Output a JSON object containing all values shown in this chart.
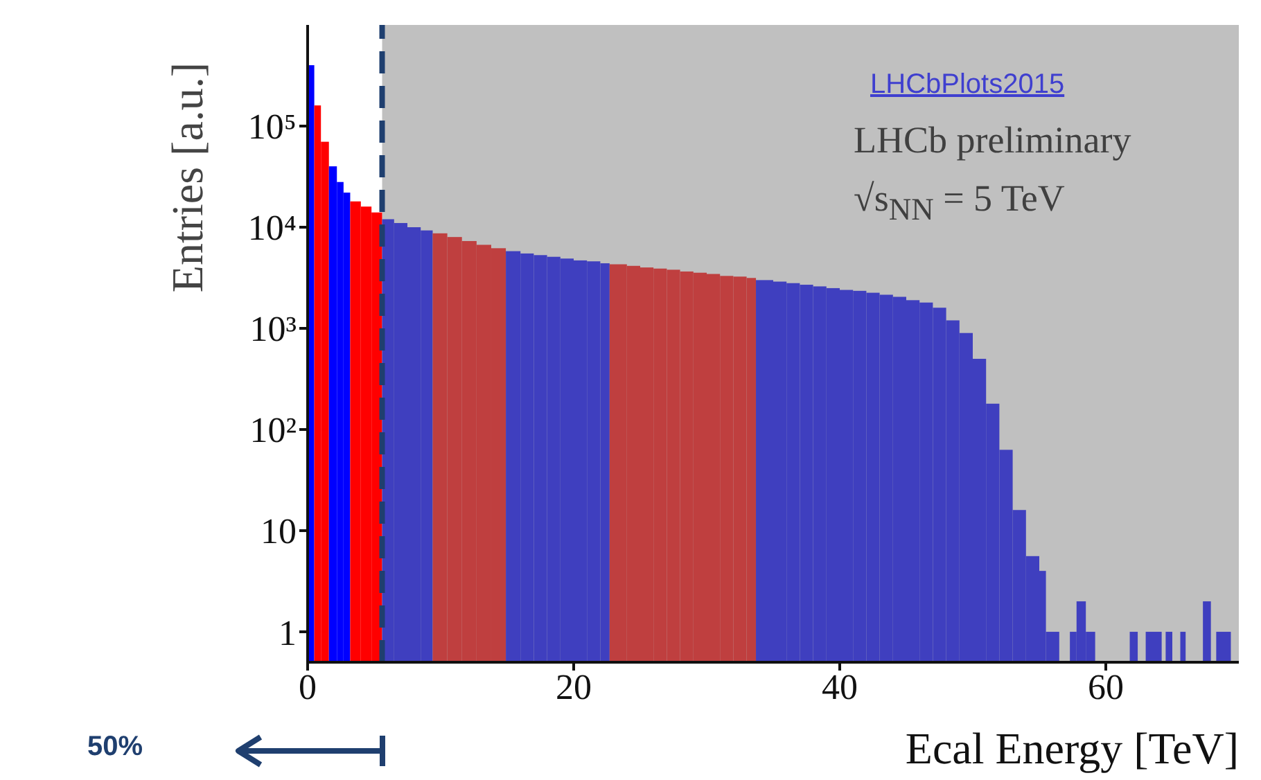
{
  "chart_data": {
    "type": "histogram",
    "xlabel": "Ecal Energy [TeV]",
    "ylabel": "Entries [a.u.]",
    "bins": [
      0,
      0.5,
      1,
      1.6,
      2.2,
      2.7,
      3.2,
      4,
      4.8,
      5.6,
      6.5,
      7.5,
      8.5,
      9.4,
      10.5,
      11.6,
      12.7,
      13.8,
      14.9,
      16,
      17,
      18,
      19,
      20,
      21,
      22,
      22.7,
      24,
      25,
      26,
      27,
      28,
      29,
      30,
      31,
      32,
      33,
      33.7,
      35,
      36,
      37,
      38,
      39,
      40,
      41,
      42,
      43,
      44,
      45,
      46,
      47,
      48,
      49,
      50,
      51,
      52,
      53,
      54,
      55,
      55.5,
      56.5,
      57.3,
      57.8,
      58.5,
      59.2,
      61.8,
      62.4,
      63,
      64.2,
      64.5,
      65,
      65.6,
      66,
      67.3,
      67.9,
      68.3,
      69.4
    ],
    "values": [
      400000,
      160000,
      70000,
      40000,
      28000,
      22000,
      18000,
      16000,
      14000,
      12000,
      11000,
      10000,
      9300,
      8700,
      8000,
      7300,
      6700,
      6200,
      5800,
      5500,
      5300,
      5100,
      4900,
      4700,
      4600,
      4400,
      4300,
      4150,
      4000,
      3900,
      3800,
      3650,
      3550,
      3450,
      3300,
      3250,
      3150,
      3000,
      2900,
      2800,
      2700,
      2600,
      2500,
      2400,
      2350,
      2250,
      2150,
      2050,
      1900,
      1800,
      1600,
      1200,
      900,
      500,
      180,
      63,
      16,
      5.6,
      4,
      1,
      null,
      1,
      2,
      1,
      null,
      1,
      null,
      1,
      null,
      1,
      null,
      1,
      null,
      2,
      null,
      1
    ],
    "colors": [
      "#0000ff",
      "#ff0000",
      "#ff0000",
      "#0000ff",
      "#0000ff",
      "#0000ff",
      "#ff0000",
      "#ff0000",
      "#ff0000",
      "#3f3fbf",
      "#3f3fbf",
      "#3f3fbf",
      "#3f3fbf",
      "#bf3f3f",
      "#bf3f3f",
      "#bf3f3f",
      "#bf3f3f",
      "#bf3f3f",
      "#3f3fbf",
      "#3f3fbf",
      "#3f3fbf",
      "#3f3fbf",
      "#3f3fbf",
      "#3f3fbf",
      "#3f3fbf",
      "#3f3fbf",
      "#bf3f3f",
      "#bf3f3f",
      "#bf3f3f",
      "#bf3f3f",
      "#bf3f3f",
      "#bf3f3f",
      "#bf3f3f",
      "#bf3f3f",
      "#bf3f3f",
      "#bf3f3f",
      "#bf3f3f",
      "#3f3fbf",
      "#3f3fbf",
      "#3f3fbf",
      "#3f3fbf",
      "#3f3fbf",
      "#3f3fbf",
      "#3f3fbf",
      "#3f3fbf",
      "#3f3fbf",
      "#3f3fbf",
      "#3f3fbf",
      "#3f3fbf",
      "#3f3fbf",
      "#3f3fbf",
      "#3f3fbf",
      "#3f3fbf",
      "#3f3fbf",
      "#3f3fbf",
      "#3f3fbf",
      "#3f3fbf",
      "#3f3fbf",
      "#3f3fbf",
      "#3f3fbf",
      "#3f3fbf",
      "#3f3fbf",
      "#3f3fbf",
      "#3f3fbf",
      "#3f3fbf",
      "#3f3fbf",
      "#3f3fbf",
      "#3f3fbf",
      "#3f3fbf",
      "#3f3fbf",
      "#3f3fbf",
      "#3f3fbf",
      "#3f3fbf",
      "#3f3fbf",
      "#3f3fbf",
      "#3f3fbf"
    ],
    "log": "y",
    "xlim": [
      0,
      70
    ],
    "xticks": [
      0,
      20,
      40,
      60
    ],
    "ylim": [
      0.5,
      1000000
    ],
    "yticks": [
      1,
      10,
      {
        "value": 100,
        "label": "10²"
      },
      {
        "value": 1000,
        "label": "10³"
      },
      {
        "value": 10000,
        "label": "10⁴"
      },
      {
        "value": 100000,
        "label": "10⁵"
      }
    ],
    "bands": [
      {
        "axis": "x",
        "from": 5.6,
        "to": 70,
        "color": "#c0c0c0"
      }
    ],
    "ref_lines": [
      {
        "axis": "x",
        "value": 5.6,
        "color": "#1f3f6f",
        "line_style": "dashed"
      }
    ],
    "annotations": [
      "LHCbPlots2015",
      "LHCb preliminary",
      "√s$_{NN}$ = 5 TeV",
      "50%"
    ]
  }
}
